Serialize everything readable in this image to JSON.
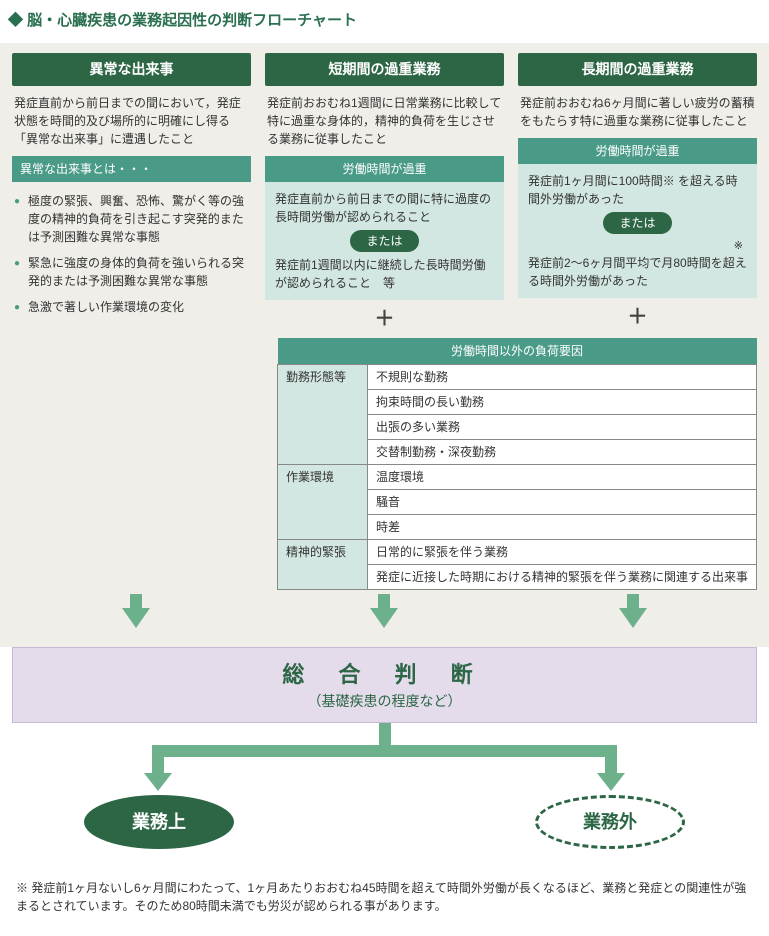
{
  "title": "脳・心臓疾患の業務起因性の判断フローチャート",
  "columns": {
    "abnormal": {
      "header": "異常な出来事",
      "intro": "発症直前から前日までの間において，発症状態を時間的及び場所的に明確にし得る「異常な出来事」に遭遇したこと",
      "sub": "異常な出来事とは・・・",
      "bullets": [
        "極度の緊張、興奮、恐怖、驚がく等の強度の精神的負荷を引き起こす突発的または予測困難な異常な事態",
        "緊急に強度の身体的負荷を強いられる突発的または予測困難な異常な事態",
        "急激で著しい作業環境の変化"
      ]
    },
    "short": {
      "header": "短期間の過重業務",
      "intro": "発症前おおむね1週間に日常業務に比較して特に過重な身体的，精神的負荷を生じさせる業務に従事したこと",
      "sub": "労働時間が過重",
      "line1": "発症直前から前日までの間に特に過度の長時間労働が認められること",
      "or": "または",
      "line2": "発症前1週間以内に継続した長時間労働が認められること　等"
    },
    "long": {
      "header": "長期間の過重業務",
      "intro": "発症前おおむね6ヶ月間に著しい疲労の蓄積をもたらす特に過重な業務に従事したこと",
      "sub": "労働時間が過重",
      "line1": "発症前1ヶ月間に100時間※ を超える時間外労働があった",
      "or": "または",
      "line2": "発症前2〜6ヶ月間平均で月80時間を超える時間外労働があった",
      "asterisk": "※"
    }
  },
  "plus": "＋",
  "factor_table": {
    "title": "労働時間以外の負荷要因",
    "groups": [
      {
        "cat": "勤務形態等",
        "items": [
          "不規則な勤務",
          "拘束時間の長い勤務",
          "出張の多い業務",
          "交替制勤務・深夜勤務"
        ]
      },
      {
        "cat": "作業環境",
        "items": [
          "温度環境",
          "騒音",
          "時差"
        ]
      },
      {
        "cat": "精神的緊張",
        "items": [
          "日常的に緊張を伴う業務",
          "発症に近接した時期における精神的緊張を伴う業務に関連する出来事"
        ]
      }
    ]
  },
  "judgment": {
    "main": "総 合 判 断",
    "sub": "（基礎疾患の程度など）"
  },
  "results": {
    "on": "業務上",
    "off": "業務外"
  },
  "footnote": "※ 発症前1ヶ月ないし6ヶ月間にわたって、1ヶ月あたりおおむね45時間を超えて時間外労働が長くなるほど、業務と発症との関連性が強まるとされています。そのため80時間未満でも労災が認められる事があります。",
  "colors": {
    "brand_dark": "#2c6645",
    "brand_mid": "#4a9a88",
    "brand_light": "#d3e7e2",
    "bg_beige": "#efeee8",
    "arrow": "#6cb18c",
    "lavender": "#e4dceb"
  }
}
